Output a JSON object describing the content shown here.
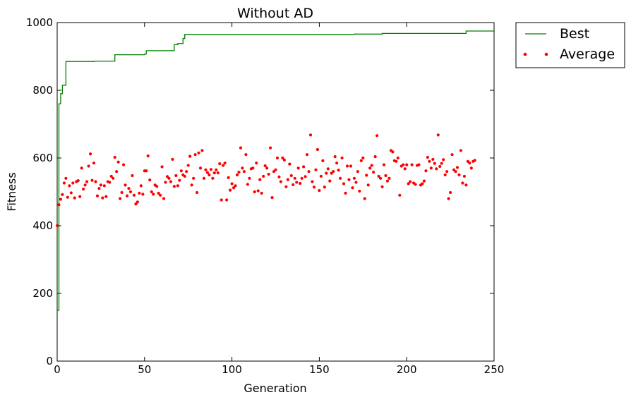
{
  "chart_data": {
    "type": "line",
    "title": "Without AD",
    "xlabel": "Generation",
    "ylabel": "Fitness",
    "xlim": [
      0,
      250
    ],
    "ylim": [
      0,
      1000
    ],
    "xticks": [
      0,
      50,
      100,
      150,
      200,
      250
    ],
    "yticks": [
      0,
      200,
      400,
      600,
      800,
      1000
    ],
    "grid": false,
    "legend_position": "outside-top-right",
    "series": [
      {
        "name": "Best",
        "style": "line",
        "color": "#008000",
        "points": [
          [
            0,
            150
          ],
          [
            1,
            760
          ],
          [
            2,
            790
          ],
          [
            3,
            815
          ],
          [
            4,
            815
          ],
          [
            5,
            885
          ],
          [
            10,
            885
          ],
          [
            15,
            885
          ],
          [
            20,
            885
          ],
          [
            21,
            886
          ],
          [
            32,
            886
          ],
          [
            33,
            905
          ],
          [
            40,
            905
          ],
          [
            45,
            905
          ],
          [
            50,
            907
          ],
          [
            51,
            917
          ],
          [
            60,
            917
          ],
          [
            66,
            917
          ],
          [
            67,
            935
          ],
          [
            69,
            938
          ],
          [
            71,
            938
          ],
          [
            72,
            953
          ],
          [
            73,
            965
          ],
          [
            100,
            965
          ],
          [
            120,
            965
          ],
          [
            140,
            965
          ],
          [
            170,
            966
          ],
          [
            185,
            966
          ],
          [
            186,
            968
          ],
          [
            200,
            968
          ],
          [
            233,
            968
          ],
          [
            234,
            975
          ],
          [
            250,
            975
          ]
        ]
      },
      {
        "name": "Average",
        "style": "scatter",
        "color": "#ff0000",
        "values": [
          400,
          462,
          478,
          492,
          526,
          540,
          484,
          518,
          497,
          526,
          482,
          530,
          533,
          486,
          570,
          508,
          520,
          530,
          576,
          612,
          534,
          585,
          530,
          488,
          510,
          520,
          482,
          518,
          486,
          530,
          528,
          546,
          540,
          602,
          560,
          588,
          480,
          498,
          580,
          520,
          488,
          510,
          500,
          548,
          490,
          464,
          470,
          496,
          518,
          493,
          562,
          562,
          606,
          535,
          500,
          493,
          520,
          516,
          496,
          490,
          574,
          480,
          528,
          545,
          540,
          530,
          596,
          516,
          548,
          518,
          534,
          562,
          550,
          546,
          560,
          578,
          605,
          520,
          540,
          610,
          498,
          615,
          570,
          622,
          540,
          565,
          557,
          550,
          566,
          540,
          556,
          565,
          556,
          583,
          476,
          578,
          585,
          476,
          542,
          505,
          524,
          512,
          518,
          550,
          558,
          630,
          570,
          560,
          610,
          522,
          540,
          568,
          570,
          500,
          585,
          503,
          536,
          496,
          546,
          577,
          570,
          552,
          630,
          483,
          560,
          565,
          600,
          544,
          530,
          600,
          594,
          515,
          536,
          582,
          548,
          521,
          540,
          528,
          570,
          525,
          540,
          574,
          545,
          610,
          560,
          668,
          530,
          514,
          565,
          625,
          504,
          546,
          592,
          514,
          555,
          568,
          532,
          555,
          560,
          604,
          585,
          564,
          540,
          600,
          524,
          496,
          576,
          536,
          576,
          512,
          540,
          528,
          560,
          502,
          592,
          600,
          480,
          549,
          520,
          570,
          578,
          558,
          604,
          666,
          546,
          540,
          515,
          580,
          548,
          532,
          540,
          622,
          618,
          592,
          590,
          600,
          490,
          576,
          580,
          568,
          580,
          524,
          530,
          580,
          526,
          522,
          578,
          580,
          520,
          524,
          532,
          562,
          602,
          590,
          570,
          596,
          584,
          568,
          668,
          575,
          584,
          595,
          550,
          560,
          480,
          498,
          610,
          565,
          560,
          572,
          550,
          622,
          526,
          546,
          520,
          590,
          585,
          570,
          590,
          593
        ]
      }
    ]
  }
}
